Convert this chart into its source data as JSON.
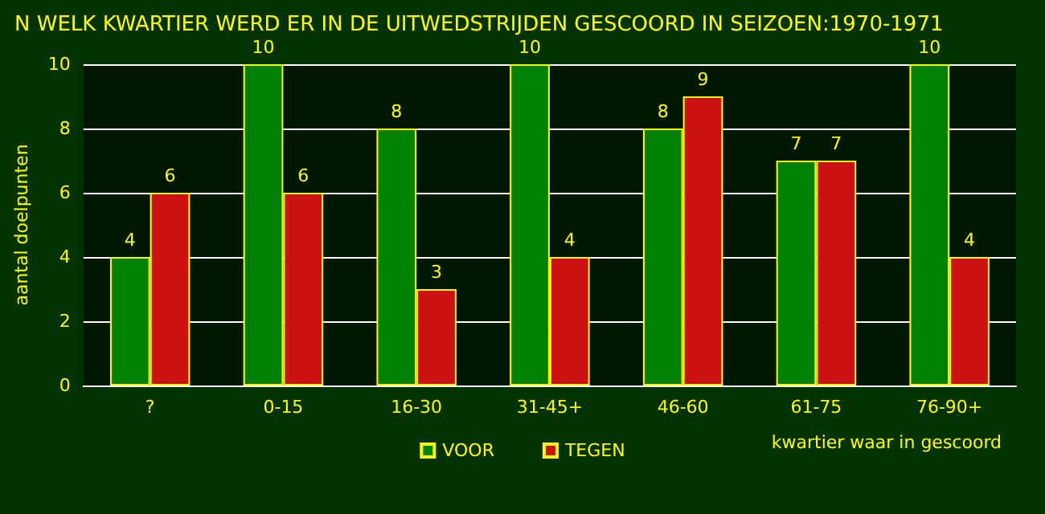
{
  "chart_data": {
    "type": "bar",
    "title": "N WELK KWARTIER WERD ER IN DE UITWEDSTRIJDEN GESCOORD IN SEIZOEN:1970-1971",
    "xlabel": "kwartier waar in gescoord",
    "ylabel": "aantal doelpunten",
    "categories": [
      "?",
      "0-15",
      "16-30",
      "31-45+",
      "46-60",
      "61-75",
      "76-90+"
    ],
    "series": [
      {
        "name": "VOOR",
        "color": "#008000",
        "values": [
          4,
          10,
          8,
          10,
          8,
          7,
          10
        ]
      },
      {
        "name": "TEGEN",
        "color": "#cc1111",
        "values": [
          6,
          6,
          3,
          4,
          9,
          7,
          4
        ]
      }
    ],
    "ylim": [
      0,
      10
    ],
    "yticks": [
      0,
      2,
      4,
      6,
      8,
      10
    ],
    "grid": "y",
    "legend": "bottom",
    "data_labels": true
  }
}
